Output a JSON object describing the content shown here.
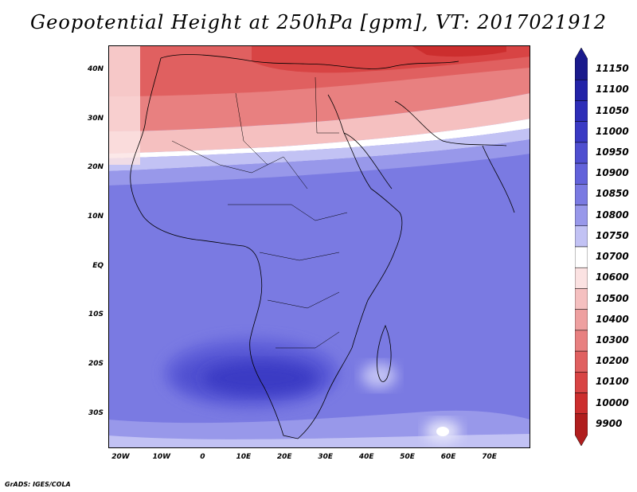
{
  "title": "Geopotential Height at 250hPa [gpm], VT: 2017021912",
  "footer": "GrADS: IGES/COLA",
  "map": {
    "variable": "Geopotential Height at 250hPa",
    "units": "gpm",
    "valid_time": "2017021912",
    "lon_range": [
      -23,
      80
    ],
    "lat_range": [
      -37,
      45
    ],
    "lat_ticks": [
      {
        "value": 40,
        "label": "40N"
      },
      {
        "value": 30,
        "label": "30N"
      },
      {
        "value": 20,
        "label": "20N"
      },
      {
        "value": 10,
        "label": "10N"
      },
      {
        "value": 0,
        "label": "EQ"
      },
      {
        "value": -10,
        "label": "10S"
      },
      {
        "value": -20,
        "label": "20S"
      },
      {
        "value": -30,
        "label": "30S"
      }
    ],
    "lon_ticks": [
      {
        "value": -20,
        "label": "20W"
      },
      {
        "value": -10,
        "label": "10W"
      },
      {
        "value": 0,
        "label": "0"
      },
      {
        "value": 10,
        "label": "10E"
      },
      {
        "value": 20,
        "label": "20E"
      },
      {
        "value": 30,
        "label": "30E"
      },
      {
        "value": 40,
        "label": "40E"
      },
      {
        "value": 50,
        "label": "50E"
      },
      {
        "value": 60,
        "label": "60E"
      },
      {
        "value": 70,
        "label": "70E"
      }
    ]
  },
  "colorbar": {
    "levels": [
      "11150",
      "11100",
      "11050",
      "11000",
      "10950",
      "10900",
      "10850",
      "10800",
      "10750",
      "10700",
      "10600",
      "10500",
      "10400",
      "10300",
      "10200",
      "10100",
      "10000",
      "9900"
    ],
    "colors": [
      "#1a1a8c",
      "#2323a8",
      "#2e2eb8",
      "#3a3ac4",
      "#4f4fd0",
      "#6262da",
      "#7a7ae2",
      "#9898ea",
      "#c2c2f4",
      "#ffffff",
      "#fbe2e2",
      "#f5c0c0",
      "#eea0a0",
      "#e88080",
      "#e06060",
      "#d84444",
      "#cc2e2e",
      "#b01e1e"
    ]
  }
}
